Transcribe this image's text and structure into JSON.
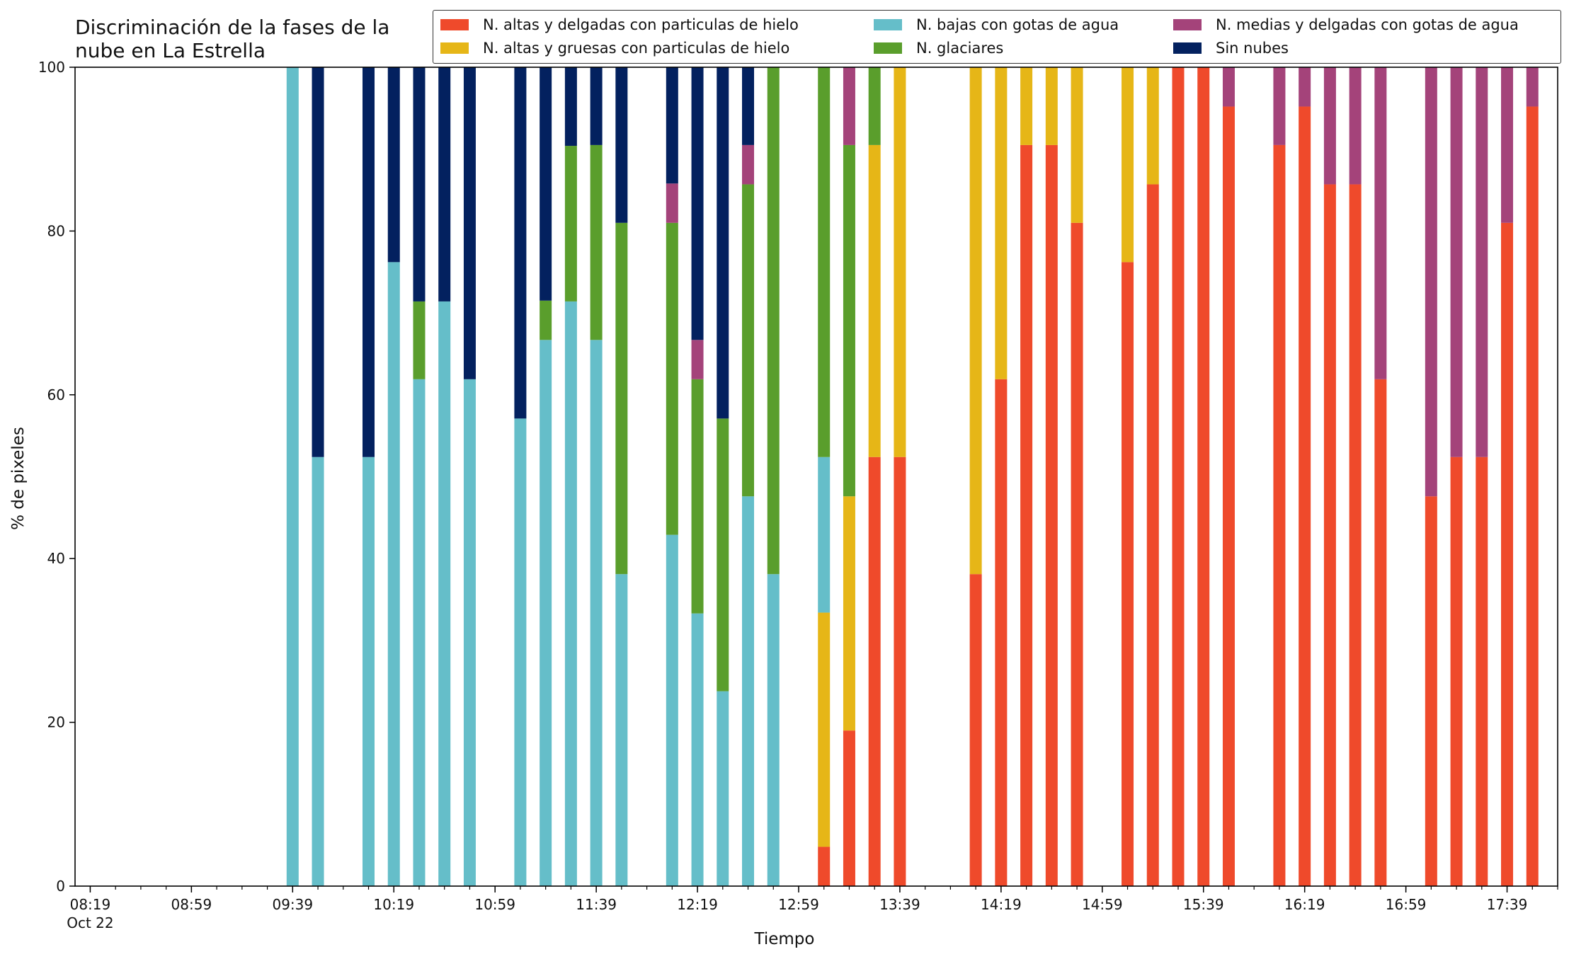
{
  "chart_data": {
    "type": "bar",
    "title": "Discriminación de la fases de la nube en La Estrella",
    "xlabel": "Tiempo",
    "ylabel": "% de pixeles",
    "ylim": [
      0,
      100
    ],
    "yticks": [
      0,
      20,
      40,
      60,
      80,
      100
    ],
    "x_date_label": "Oct 22",
    "xticks": [
      "08:19",
      "08:59",
      "09:39",
      "10:19",
      "10:59",
      "11:39",
      "12:19",
      "12:59",
      "13:39",
      "14:19",
      "14:59",
      "15:39",
      "16:19",
      "16:59",
      "17:39"
    ],
    "legend_position": "top-right",
    "series": [
      {
        "key": "altas_delgadas",
        "name": "N. altas y delgadas con particulas de hielo",
        "color": "#ef4a2b"
      },
      {
        "key": "altas_gruesas",
        "name": "N. altas y gruesas con particulas de hielo",
        "color": "#e6b617"
      },
      {
        "key": "bajas_agua",
        "name": "N. bajas con gotas de agua",
        "color": "#65bec9"
      },
      {
        "key": "glaciares",
        "name": "N. glaciares",
        "color": "#5a9e2c"
      },
      {
        "key": "medias_agua",
        "name": "N. medias y delgadas con gotas de agua",
        "color": "#a4437a"
      },
      {
        "key": "sin_nubes",
        "name": "Sin nubes",
        "color": "#03215f"
      }
    ],
    "bars": [
      {
        "time": "09:39",
        "values": [
          0,
          0,
          100,
          0,
          0,
          0
        ]
      },
      {
        "time": "09:49",
        "values": [
          0,
          0,
          52.4,
          0,
          0,
          47.6
        ]
      },
      {
        "time": "10:09",
        "values": [
          0,
          0,
          52.4,
          0,
          0,
          47.6
        ]
      },
      {
        "time": "10:19",
        "values": [
          0,
          0,
          76.2,
          0,
          0,
          23.8
        ]
      },
      {
        "time": "10:29",
        "values": [
          0,
          0,
          61.9,
          9.5,
          0,
          28.6
        ]
      },
      {
        "time": "10:39",
        "values": [
          0,
          0,
          71.4,
          0,
          0,
          28.6
        ]
      },
      {
        "time": "10:49",
        "values": [
          0,
          0,
          61.9,
          0,
          0,
          38.1
        ]
      },
      {
        "time": "11:09",
        "values": [
          0,
          0,
          57.1,
          0,
          0,
          42.9
        ]
      },
      {
        "time": "11:19",
        "values": [
          0,
          0,
          66.7,
          4.8,
          0,
          28.5
        ]
      },
      {
        "time": "11:29",
        "values": [
          0,
          0,
          71.4,
          19.0,
          0,
          9.6
        ]
      },
      {
        "time": "11:39",
        "values": [
          0,
          0,
          66.7,
          23.8,
          0,
          9.5
        ]
      },
      {
        "time": "11:49",
        "values": [
          0,
          0,
          38.1,
          42.9,
          0,
          19.0
        ]
      },
      {
        "time": "12:09",
        "values": [
          0,
          0,
          42.9,
          38.1,
          4.8,
          14.2
        ]
      },
      {
        "time": "12:19",
        "values": [
          0,
          0,
          33.3,
          28.6,
          4.8,
          33.3
        ]
      },
      {
        "time": "12:29",
        "values": [
          0,
          0,
          23.8,
          33.3,
          0,
          42.9
        ]
      },
      {
        "time": "12:39",
        "values": [
          0,
          0,
          47.6,
          38.1,
          4.8,
          9.5
        ]
      },
      {
        "time": "12:49",
        "values": [
          0,
          0,
          38.1,
          61.9,
          0,
          0
        ]
      },
      {
        "time": "13:09",
        "values": [
          4.8,
          28.6,
          19.0,
          47.6,
          0,
          0
        ]
      },
      {
        "time": "13:19",
        "values": [
          19.0,
          28.6,
          0,
          42.9,
          9.5,
          0
        ]
      },
      {
        "time": "13:29",
        "values": [
          52.4,
          38.1,
          0,
          9.5,
          0,
          0
        ]
      },
      {
        "time": "13:39",
        "values": [
          52.4,
          47.6,
          0,
          0,
          0,
          0
        ]
      },
      {
        "time": "14:09",
        "values": [
          38.1,
          61.9,
          0,
          0,
          0,
          0
        ]
      },
      {
        "time": "14:19",
        "values": [
          61.9,
          38.1,
          0,
          0,
          0,
          0
        ]
      },
      {
        "time": "14:29",
        "values": [
          90.5,
          9.5,
          0,
          0,
          0,
          0
        ]
      },
      {
        "time": "14:39",
        "values": [
          90.5,
          9.5,
          0,
          0,
          0,
          0
        ]
      },
      {
        "time": "14:49",
        "values": [
          81.0,
          19.0,
          0,
          0,
          0,
          0
        ]
      },
      {
        "time": "15:09",
        "values": [
          76.2,
          23.8,
          0,
          0,
          0,
          0
        ]
      },
      {
        "time": "15:19",
        "values": [
          85.7,
          14.3,
          0,
          0,
          0,
          0
        ]
      },
      {
        "time": "15:29",
        "values": [
          100,
          0,
          0,
          0,
          0,
          0
        ]
      },
      {
        "time": "15:39",
        "values": [
          100,
          0,
          0,
          0,
          0,
          0
        ]
      },
      {
        "time": "15:49",
        "values": [
          95.2,
          0,
          0,
          0,
          4.8,
          0
        ]
      },
      {
        "time": "16:09",
        "values": [
          90.5,
          0,
          0,
          0,
          9.5,
          0
        ]
      },
      {
        "time": "16:19",
        "values": [
          95.2,
          0,
          0,
          0,
          4.8,
          0
        ]
      },
      {
        "time": "16:29",
        "values": [
          85.7,
          0,
          0,
          0,
          14.3,
          0
        ]
      },
      {
        "time": "16:39",
        "values": [
          85.7,
          0,
          0,
          0,
          14.3,
          0
        ]
      },
      {
        "time": "16:49",
        "values": [
          61.9,
          0,
          0,
          0,
          38.1,
          0
        ]
      },
      {
        "time": "17:09",
        "values": [
          47.6,
          0,
          0,
          0,
          52.4,
          0
        ]
      },
      {
        "time": "17:19",
        "values": [
          52.4,
          0,
          0,
          0,
          47.6,
          0
        ]
      },
      {
        "time": "17:29",
        "values": [
          52.4,
          0,
          0,
          0,
          47.6,
          0
        ]
      },
      {
        "time": "17:39",
        "values": [
          81.0,
          0,
          0,
          0,
          19.0,
          0
        ]
      },
      {
        "time": "17:49",
        "values": [
          95.2,
          0,
          0,
          0,
          4.8,
          0
        ]
      }
    ]
  }
}
